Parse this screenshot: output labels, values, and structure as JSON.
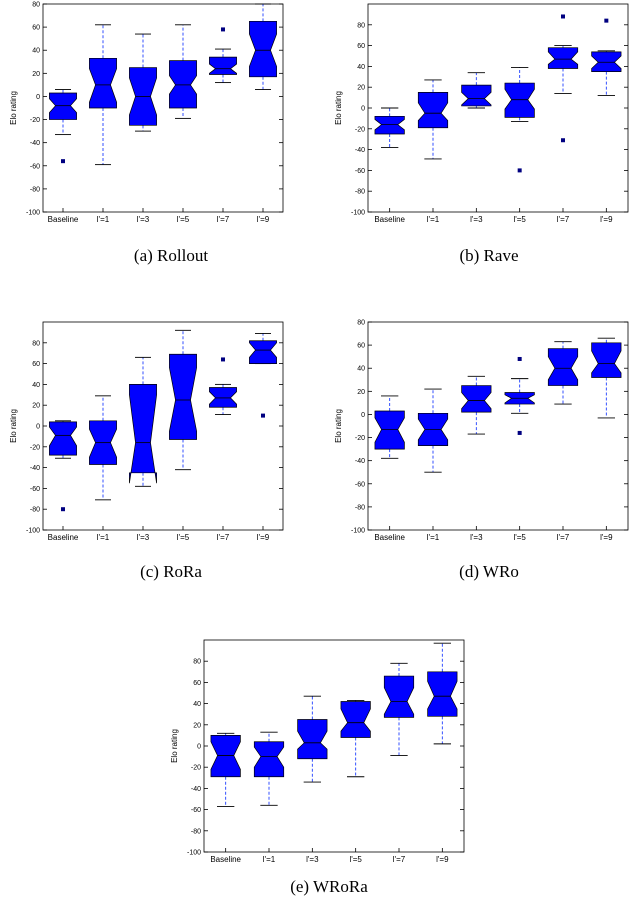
{
  "figure": {
    "captions": [
      "(a)  Rollout",
      "(b)  Rave",
      "(c)  RoRa",
      "(d)  WRo",
      "(e)  WRoRa"
    ]
  },
  "colors": {
    "box_fill": "#0000ff",
    "whisker": "#1f3fff",
    "outlier": "#000080",
    "median": "#000000"
  },
  "chart_data": [
    {
      "type": "box",
      "name": "Rollout",
      "ylabel": "Elo rating",
      "ylim": [
        -100,
        80
      ],
      "yticks": [
        -100,
        -80,
        -60,
        -40,
        -20,
        0,
        20,
        40,
        60,
        80
      ],
      "categories": [
        "Baseline",
        "l'=1",
        "l'=3",
        "l'=5",
        "l'=7",
        "l'=9"
      ],
      "boxes": [
        {
          "whislo": -33,
          "q1": -20,
          "med": -8,
          "q3": 3,
          "whishi": 6,
          "notch_lo": -14,
          "notch_hi": -2,
          "fliers": [
            -56
          ]
        },
        {
          "whislo": -59,
          "q1": -10,
          "med": 10,
          "q3": 33,
          "whishi": 62,
          "notch_lo": -5,
          "notch_hi": 24,
          "fliers": []
        },
        {
          "whislo": -30,
          "q1": -25,
          "med": 0,
          "q3": 25,
          "whishi": 54,
          "notch_lo": -16,
          "notch_hi": 16,
          "fliers": []
        },
        {
          "whislo": -19,
          "q1": -10,
          "med": 10,
          "q3": 31,
          "whishi": 62,
          "notch_lo": 2,
          "notch_hi": 18,
          "fliers": []
        },
        {
          "whislo": 12,
          "q1": 19,
          "med": 24,
          "q3": 34,
          "whishi": 41,
          "notch_lo": 20,
          "notch_hi": 28,
          "fliers": [
            58
          ]
        },
        {
          "whislo": 6,
          "q1": 17,
          "med": 40,
          "q3": 65,
          "whishi": 80,
          "notch_lo": 26,
          "notch_hi": 54,
          "fliers": []
        }
      ]
    },
    {
      "type": "box",
      "name": "Rave",
      "ylabel": "Elo rating",
      "ylim": [
        -100,
        100
      ],
      "yticks": [
        -100,
        -80,
        -60,
        -40,
        -20,
        0,
        20,
        40,
        60,
        80
      ],
      "categories": [
        "Baseline",
        "l'=1",
        "l'=3",
        "l'=5",
        "l'=7",
        "l'=9"
      ],
      "boxes": [
        {
          "whislo": -38,
          "q1": -25,
          "med": -16,
          "q3": -8,
          "whishi": 0,
          "notch_lo": -21,
          "notch_hi": -11,
          "fliers": []
        },
        {
          "whislo": -49,
          "q1": -19,
          "med": -5,
          "q3": 15,
          "whishi": 27,
          "notch_lo": -12,
          "notch_hi": 5,
          "fliers": []
        },
        {
          "whislo": 0,
          "q1": 2,
          "med": 9,
          "q3": 22,
          "whishi": 34,
          "notch_lo": 3,
          "notch_hi": 15,
          "fliers": []
        },
        {
          "whislo": -13,
          "q1": -9,
          "med": 8,
          "q3": 24,
          "whishi": 39,
          "notch_lo": -1,
          "notch_hi": 18,
          "fliers": [
            -60
          ]
        },
        {
          "whislo": 14,
          "q1": 38,
          "med": 47,
          "q3": 58,
          "whishi": 60,
          "notch_lo": 42,
          "notch_hi": 54,
          "fliers": [
            88,
            -31
          ]
        },
        {
          "whislo": 12,
          "q1": 35,
          "med": 44,
          "q3": 54,
          "whishi": 55,
          "notch_lo": 38,
          "notch_hi": 50,
          "fliers": [
            84
          ]
        }
      ]
    },
    {
      "type": "box",
      "name": "RoRa",
      "ylabel": "Elo rating",
      "ylim": [
        -100,
        100
      ],
      "yticks": [
        -100,
        -80,
        -60,
        -40,
        -20,
        0,
        20,
        40,
        60,
        80
      ],
      "categories": [
        "Baseline",
        "l'=1",
        "l'=3",
        "l'=5",
        "l'=7",
        "l'=9"
      ],
      "boxes": [
        {
          "whislo": -31,
          "q1": -28,
          "med": -9,
          "q3": 4,
          "whishi": 5,
          "notch_lo": -19,
          "notch_hi": -1,
          "fliers": [
            -80
          ]
        },
        {
          "whislo": -71,
          "q1": -37,
          "med": -16,
          "q3": 5,
          "whishi": 29,
          "notch_lo": -30,
          "notch_hi": -3,
          "fliers": []
        },
        {
          "whislo": -58,
          "q1": -45,
          "med": -16,
          "q3": 40,
          "whishi": 66,
          "notch_lo": -55,
          "notch_hi": 30,
          "fliers": []
        },
        {
          "whislo": -42,
          "q1": -13,
          "med": 25,
          "q3": 69,
          "whishi": 92,
          "notch_lo": -5,
          "notch_hi": 56,
          "fliers": []
        },
        {
          "whislo": 11,
          "q1": 18,
          "med": 27,
          "q3": 37,
          "whishi": 40,
          "notch_lo": 21,
          "notch_hi": 33,
          "fliers": [
            64
          ]
        },
        {
          "whislo": 60,
          "q1": 60,
          "med": 73,
          "q3": 82,
          "whishi": 89,
          "notch_lo": 66,
          "notch_hi": 80,
          "fliers": [
            10
          ]
        }
      ]
    },
    {
      "type": "box",
      "name": "WRo",
      "ylabel": "Elo rating",
      "ylim": [
        -100,
        80
      ],
      "yticks": [
        -100,
        -80,
        -60,
        -40,
        -20,
        0,
        20,
        40,
        60,
        80
      ],
      "categories": [
        "Baseline",
        "l'=1",
        "l'=3",
        "l'=5",
        "l'=7",
        "l'=9"
      ],
      "boxes": [
        {
          "whislo": -38,
          "q1": -30,
          "med": -13,
          "q3": 3,
          "whishi": 16,
          "notch_lo": -24,
          "notch_hi": -3,
          "fliers": []
        },
        {
          "whislo": -50,
          "q1": -27,
          "med": -13,
          "q3": 1,
          "whishi": 22,
          "notch_lo": -22,
          "notch_hi": -4,
          "fliers": []
        },
        {
          "whislo": -17,
          "q1": 2,
          "med": 12,
          "q3": 25,
          "whishi": 33,
          "notch_lo": 5,
          "notch_hi": 19,
          "fliers": []
        },
        {
          "whislo": 1,
          "q1": 9,
          "med": 14,
          "q3": 19,
          "whishi": 31,
          "notch_lo": 10,
          "notch_hi": 17,
          "fliers": [
            48,
            -16
          ]
        },
        {
          "whislo": 9,
          "q1": 25,
          "med": 40,
          "q3": 57,
          "whishi": 63,
          "notch_lo": 30,
          "notch_hi": 50,
          "fliers": []
        },
        {
          "whislo": -3,
          "q1": 32,
          "med": 44,
          "q3": 62,
          "whishi": 66,
          "notch_lo": 36,
          "notch_hi": 55,
          "fliers": []
        }
      ]
    },
    {
      "type": "box",
      "name": "WRoRa",
      "ylabel": "Elo rating",
      "ylim": [
        -100,
        100
      ],
      "yticks": [
        -100,
        -80,
        -60,
        -40,
        -20,
        0,
        20,
        40,
        60,
        80
      ],
      "categories": [
        "Baseline",
        "l'=1",
        "l'=3",
        "l'=5",
        "l'=7",
        "l'=9"
      ],
      "boxes": [
        {
          "whislo": -57,
          "q1": -29,
          "med": -9,
          "q3": 10,
          "whishi": 12,
          "notch_lo": -22,
          "notch_hi": 4,
          "fliers": []
        },
        {
          "whislo": -56,
          "q1": -29,
          "med": -10,
          "q3": 4,
          "whishi": 13,
          "notch_lo": -20,
          "notch_hi": -1,
          "fliers": []
        },
        {
          "whislo": -34,
          "q1": -12,
          "med": 3,
          "q3": 25,
          "whishi": 47,
          "notch_lo": -3,
          "notch_hi": 14,
          "fliers": []
        },
        {
          "whislo": -29,
          "q1": 8,
          "med": 22,
          "q3": 42,
          "whishi": 43,
          "notch_lo": 14,
          "notch_hi": 35,
          "fliers": []
        },
        {
          "whislo": -9,
          "q1": 27,
          "med": 42,
          "q3": 66,
          "whishi": 78,
          "notch_lo": 30,
          "notch_hi": 55,
          "fliers": []
        },
        {
          "whislo": 2,
          "q1": 28,
          "med": 47,
          "q3": 70,
          "whishi": 97,
          "notch_lo": 35,
          "notch_hi": 61,
          "fliers": []
        }
      ]
    }
  ]
}
